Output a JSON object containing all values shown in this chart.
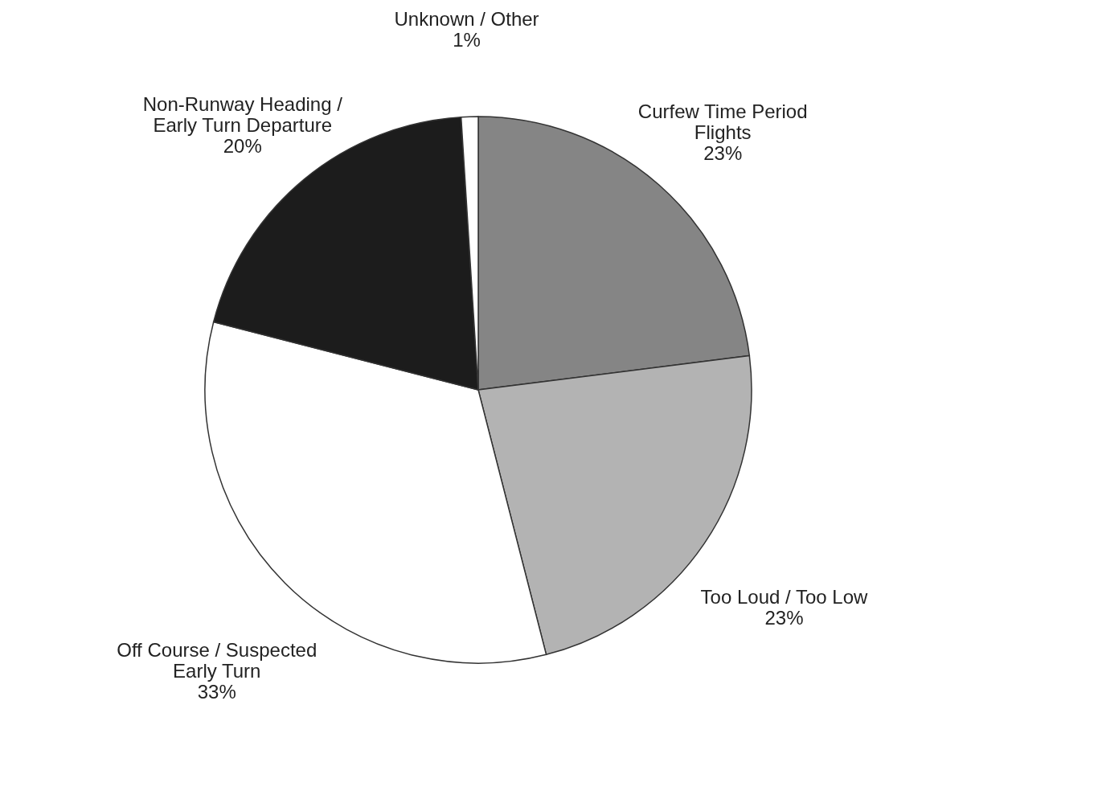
{
  "chart_data": {
    "type": "pie",
    "categories": [
      "Curfew Time Period Flights",
      "Too Loud / Too Low",
      "Off Course / Suspected Early Turn",
      "Non-Runway Heading / Early Turn Departure",
      "Unknown / Other"
    ],
    "values": [
      23,
      23,
      33,
      20,
      1
    ],
    "colors": [
      "#858585",
      "#b3b3b3",
      "#ffffff",
      "#1c1c1c",
      "#ffffff"
    ],
    "value_labels": [
      "23%",
      "23%",
      "33%",
      "20%",
      "1%"
    ]
  }
}
